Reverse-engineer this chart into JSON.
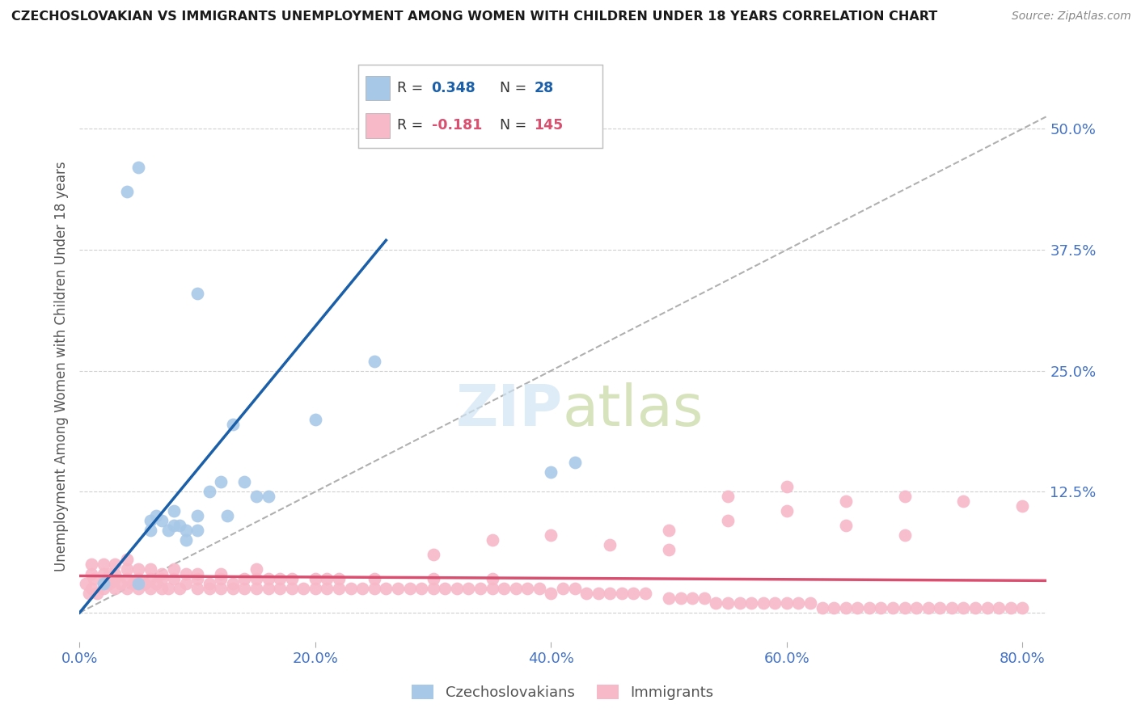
{
  "title": "CZECHOSLOVAKIAN VS IMMIGRANTS UNEMPLOYMENT AMONG WOMEN WITH CHILDREN UNDER 18 YEARS CORRELATION CHART",
  "source": "Source: ZipAtlas.com",
  "ylabel": "Unemployment Among Women with Children Under 18 years",
  "xlim": [
    0.0,
    0.82
  ],
  "ylim": [
    -0.03,
    0.54
  ],
  "yticks": [
    0.0,
    0.125,
    0.25,
    0.375,
    0.5
  ],
  "ytick_labels": [
    "",
    "12.5%",
    "25.0%",
    "37.5%",
    "50.0%"
  ],
  "xticks": [
    0.0,
    0.2,
    0.4,
    0.6,
    0.8
  ],
  "xtick_labels": [
    "0.0%",
    "20.0%",
    "40.0%",
    "60.0%",
    "80.0%"
  ],
  "blue_color": "#a8c8e8",
  "pink_color": "#f7b8c8",
  "blue_line_color": "#1a5fa8",
  "pink_line_color": "#d94f70",
  "gray_dash_color": "#b0b0b0",
  "axis_label_color": "#4472c4",
  "grid_color": "#d0d0d0",
  "background_color": "#ffffff",
  "czech_x": [
    0.02,
    0.04,
    0.05,
    0.05,
    0.06,
    0.06,
    0.065,
    0.07,
    0.075,
    0.08,
    0.08,
    0.085,
    0.09,
    0.09,
    0.1,
    0.1,
    0.1,
    0.11,
    0.12,
    0.125,
    0.13,
    0.14,
    0.15,
    0.16,
    0.2,
    0.25,
    0.4,
    0.42
  ],
  "czech_y": [
    0.03,
    0.435,
    0.46,
    0.03,
    0.085,
    0.095,
    0.1,
    0.095,
    0.085,
    0.09,
    0.105,
    0.09,
    0.085,
    0.075,
    0.33,
    0.1,
    0.085,
    0.125,
    0.135,
    0.1,
    0.195,
    0.135,
    0.12,
    0.12,
    0.2,
    0.26,
    0.145,
    0.155
  ],
  "imm_x": [
    0.005,
    0.008,
    0.01,
    0.01,
    0.01,
    0.012,
    0.015,
    0.02,
    0.02,
    0.02,
    0.02,
    0.025,
    0.025,
    0.03,
    0.03,
    0.03,
    0.03,
    0.035,
    0.04,
    0.04,
    0.04,
    0.04,
    0.045,
    0.05,
    0.05,
    0.05,
    0.055,
    0.06,
    0.06,
    0.06,
    0.065,
    0.07,
    0.07,
    0.07,
    0.075,
    0.08,
    0.08,
    0.085,
    0.09,
    0.09,
    0.1,
    0.1,
    0.1,
    0.11,
    0.11,
    0.12,
    0.12,
    0.12,
    0.13,
    0.13,
    0.14,
    0.14,
    0.15,
    0.15,
    0.15,
    0.16,
    0.16,
    0.17,
    0.17,
    0.18,
    0.18,
    0.19,
    0.2,
    0.2,
    0.21,
    0.21,
    0.22,
    0.22,
    0.23,
    0.24,
    0.25,
    0.25,
    0.26,
    0.27,
    0.28,
    0.29,
    0.3,
    0.3,
    0.31,
    0.32,
    0.33,
    0.34,
    0.35,
    0.35,
    0.36,
    0.37,
    0.38,
    0.39,
    0.4,
    0.41,
    0.42,
    0.43,
    0.44,
    0.45,
    0.46,
    0.47,
    0.48,
    0.5,
    0.51,
    0.52,
    0.53,
    0.54,
    0.55,
    0.56,
    0.57,
    0.58,
    0.59,
    0.6,
    0.61,
    0.62,
    0.63,
    0.64,
    0.65,
    0.66,
    0.67,
    0.68,
    0.69,
    0.7,
    0.71,
    0.72,
    0.73,
    0.74,
    0.75,
    0.76,
    0.77,
    0.78,
    0.79,
    0.8,
    0.55,
    0.6,
    0.65,
    0.7,
    0.75,
    0.8,
    0.5,
    0.55,
    0.6,
    0.65,
    0.7,
    0.3,
    0.35,
    0.4,
    0.45,
    0.5
  ],
  "imm_y": [
    0.03,
    0.02,
    0.04,
    0.05,
    0.025,
    0.035,
    0.02,
    0.03,
    0.04,
    0.025,
    0.05,
    0.03,
    0.04,
    0.025,
    0.035,
    0.04,
    0.05,
    0.03,
    0.025,
    0.035,
    0.045,
    0.055,
    0.03,
    0.025,
    0.035,
    0.045,
    0.03,
    0.025,
    0.035,
    0.045,
    0.03,
    0.025,
    0.035,
    0.04,
    0.025,
    0.035,
    0.045,
    0.025,
    0.03,
    0.04,
    0.025,
    0.035,
    0.04,
    0.025,
    0.03,
    0.025,
    0.035,
    0.04,
    0.025,
    0.03,
    0.025,
    0.035,
    0.025,
    0.035,
    0.045,
    0.025,
    0.035,
    0.025,
    0.035,
    0.025,
    0.035,
    0.025,
    0.025,
    0.035,
    0.025,
    0.035,
    0.025,
    0.035,
    0.025,
    0.025,
    0.025,
    0.035,
    0.025,
    0.025,
    0.025,
    0.025,
    0.025,
    0.035,
    0.025,
    0.025,
    0.025,
    0.025,
    0.025,
    0.035,
    0.025,
    0.025,
    0.025,
    0.025,
    0.02,
    0.025,
    0.025,
    0.02,
    0.02,
    0.02,
    0.02,
    0.02,
    0.02,
    0.015,
    0.015,
    0.015,
    0.015,
    0.01,
    0.01,
    0.01,
    0.01,
    0.01,
    0.01,
    0.01,
    0.01,
    0.01,
    0.005,
    0.005,
    0.005,
    0.005,
    0.005,
    0.005,
    0.005,
    0.005,
    0.005,
    0.005,
    0.005,
    0.005,
    0.005,
    0.005,
    0.005,
    0.005,
    0.005,
    0.005,
    0.12,
    0.13,
    0.115,
    0.12,
    0.115,
    0.11,
    0.085,
    0.095,
    0.105,
    0.09,
    0.08,
    0.06,
    0.075,
    0.08,
    0.07,
    0.065
  ]
}
